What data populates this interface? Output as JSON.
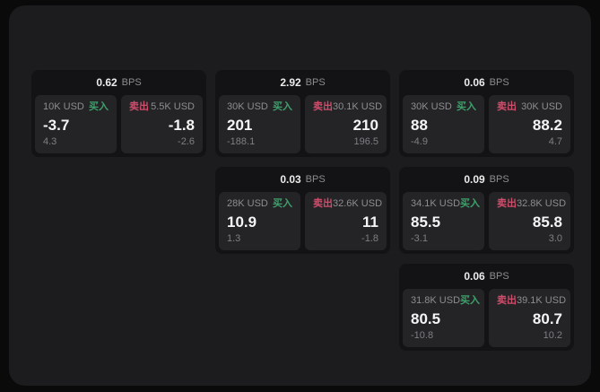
{
  "colors": {
    "page_bg": "#0a0a0a",
    "panel_bg": "#1c1c1e",
    "card_bg": "#131315",
    "tile_bg": "#242427",
    "text_primary": "#f5f5f5",
    "text_muted": "#8d8d90",
    "buy_green": "#3fa06b",
    "sell_red": "#cf4d6b"
  },
  "labels": {
    "bps_unit": "BPS",
    "buy": "买入",
    "sell": "卖出"
  },
  "cards": [
    {
      "bps": "0.62",
      "row": 1,
      "col": 1,
      "buy": {
        "amount": "10K USD",
        "value": "-3.7",
        "delta": "4.3"
      },
      "sell": {
        "amount": "5.5K USD",
        "value": "-1.8",
        "delta": "-2.6"
      }
    },
    {
      "bps": "2.92",
      "row": 1,
      "col": 2,
      "buy": {
        "amount": "30K USD",
        "value": "201",
        "delta": "-188.1"
      },
      "sell": {
        "amount": "30.1K USD",
        "value": "210",
        "delta": "196.5"
      }
    },
    {
      "bps": "0.06",
      "row": 1,
      "col": 3,
      "buy": {
        "amount": "30K USD",
        "value": "88",
        "delta": "-4.9"
      },
      "sell": {
        "amount": "30K USD",
        "value": "88.2",
        "delta": "4.7"
      }
    },
    {
      "bps": "0.03",
      "row": 2,
      "col": 2,
      "buy": {
        "amount": "28K USD",
        "value": "10.9",
        "delta": "1.3"
      },
      "sell": {
        "amount": "32.6K USD",
        "value": "11",
        "delta": "-1.8"
      }
    },
    {
      "bps": "0.09",
      "row": 2,
      "col": 3,
      "buy": {
        "amount": "34.1K USD",
        "value": "85.5",
        "delta": "-3.1"
      },
      "sell": {
        "amount": "32.8K USD",
        "value": "85.8",
        "delta": "3.0"
      }
    },
    {
      "bps": "0.06",
      "row": 3,
      "col": 3,
      "buy": {
        "amount": "31.8K USD",
        "value": "80.5",
        "delta": "-10.8"
      },
      "sell": {
        "amount": "39.1K USD",
        "value": "80.7",
        "delta": "10.2"
      }
    }
  ]
}
